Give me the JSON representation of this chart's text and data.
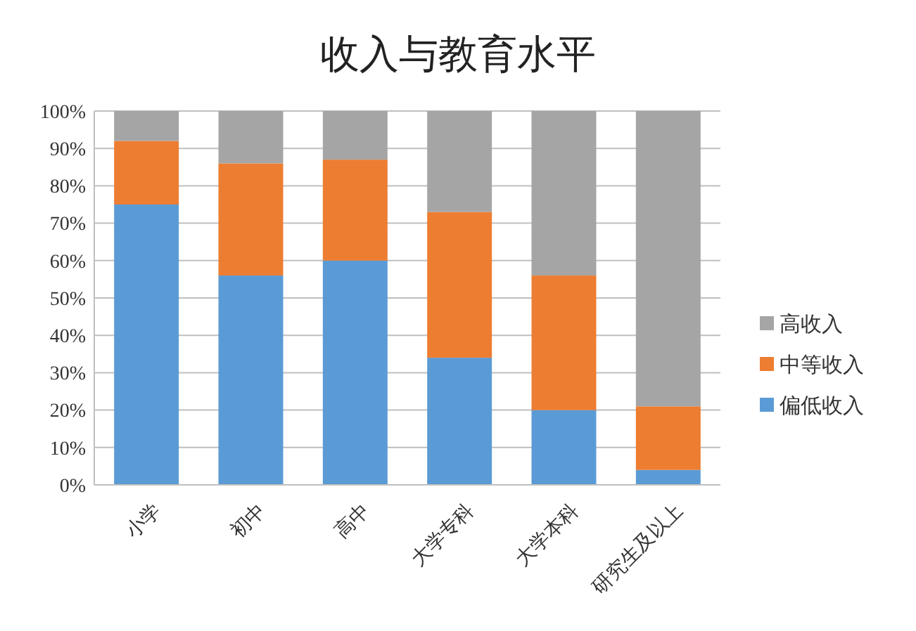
{
  "chart_data": {
    "type": "bar",
    "title": "收入与教育水平",
    "stacked": true,
    "categories": [
      "小学",
      "初中",
      "高中",
      "大学专科",
      "大学本科",
      "研究生及以上"
    ],
    "series": [
      {
        "name": "偏低收入",
        "color": "#5b9bd5",
        "values": [
          75,
          56,
          60,
          34,
          20,
          4
        ]
      },
      {
        "name": "中等收入",
        "color": "#ed7d31",
        "values": [
          17,
          30,
          27,
          39,
          36,
          17
        ]
      },
      {
        "name": "高收入",
        "color": "#a5a5a5",
        "values": [
          8,
          14,
          13,
          27,
          44,
          79
        ]
      }
    ],
    "ylim": [
      0,
      100
    ],
    "yticks": [
      {
        "value": 0,
        "label": "0%"
      },
      {
        "value": 10,
        "label": "10%"
      },
      {
        "value": 20,
        "label": "20%"
      },
      {
        "value": 30,
        "label": "30%"
      },
      {
        "value": 40,
        "label": "40%"
      },
      {
        "value": 50,
        "label": "50%"
      },
      {
        "value": 60,
        "label": "60%"
      },
      {
        "value": 70,
        "label": "70%"
      },
      {
        "value": 80,
        "label": "80%"
      },
      {
        "value": 90,
        "label": "90%"
      },
      {
        "value": 100,
        "label": "100%"
      }
    ],
    "grid": "y",
    "legend": "right"
  }
}
